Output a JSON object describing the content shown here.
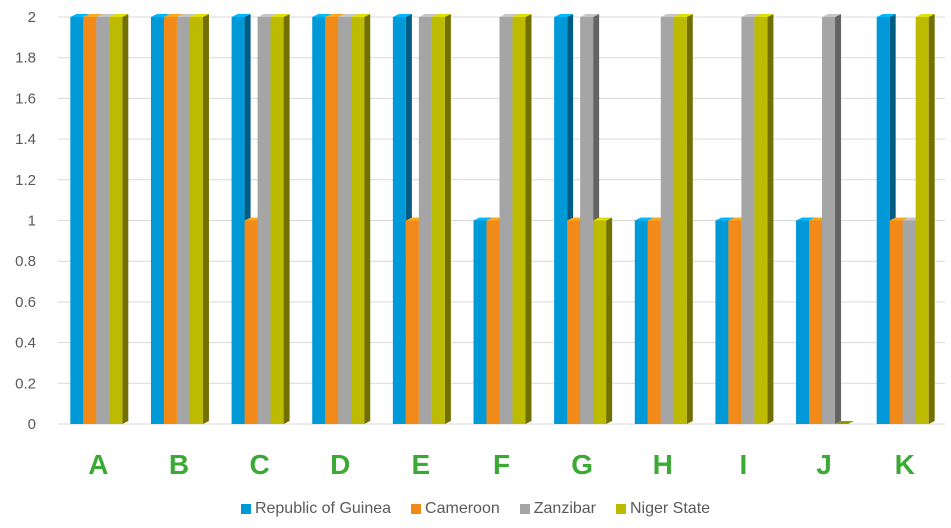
{
  "chart_data": {
    "type": "bar",
    "categories": [
      "A",
      "B",
      "C",
      "D",
      "E",
      "F",
      "G",
      "H",
      "I",
      "J",
      "K"
    ],
    "series": [
      {
        "name": "Republic of Guinea",
        "color": "#0099d8",
        "values": [
          2,
          2,
          2,
          2,
          2,
          1,
          2,
          1,
          1,
          1,
          2
        ]
      },
      {
        "name": "Cameroon",
        "color": "#f28a1a",
        "values": [
          2,
          2,
          1,
          2,
          1,
          1,
          1,
          1,
          1,
          1,
          1
        ]
      },
      {
        "name": "Zanzibar",
        "color": "#a5a5a5",
        "values": [
          2,
          2,
          2,
          2,
          2,
          2,
          2,
          2,
          2,
          2,
          1
        ]
      },
      {
        "name": "Niger State",
        "color": "#bdbb00",
        "values": [
          2,
          2,
          2,
          2,
          2,
          2,
          1,
          2,
          2,
          0,
          2
        ]
      }
    ],
    "ylim": [
      0,
      2
    ],
    "yticks": [
      "0",
      "0.2",
      "0.4",
      "0.6",
      "0.8",
      "1",
      "1.2",
      "1.4",
      "1.6",
      "1.8",
      "2"
    ],
    "category_label_color": "#3aaa35",
    "grid": true,
    "legend_position": "bottom"
  }
}
